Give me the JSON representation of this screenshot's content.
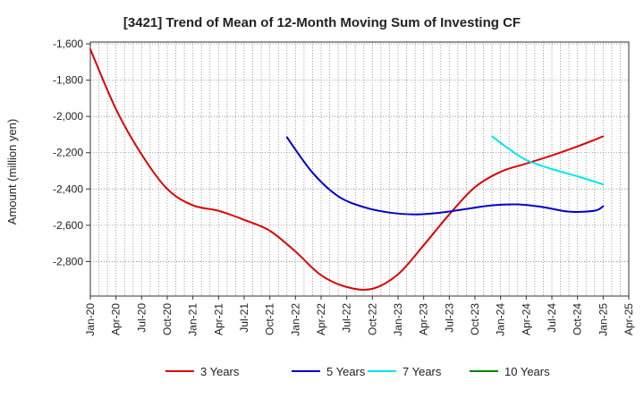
{
  "chart_data": {
    "type": "line",
    "title": "[3421]  Trend of Mean of 12-Month Moving Sum of Investing CF",
    "xlabel": "",
    "ylabel": "Amount (million yen)",
    "ylim": [
      -2990,
      -1590
    ],
    "yticks": [
      -1600,
      -1800,
      -2000,
      -2200,
      -2400,
      -2600,
      -2800
    ],
    "ytick_labels": [
      "-1,600",
      "-1,800",
      "-2,000",
      "-2,200",
      "-2,400",
      "-2,600",
      "-2,800"
    ],
    "xtick_labels": [
      "Jan-20",
      "Apr-20",
      "Jul-20",
      "Oct-20",
      "Jan-21",
      "Apr-21",
      "Jul-21",
      "Oct-21",
      "Jan-22",
      "Apr-22",
      "Jul-22",
      "Oct-22",
      "Jan-23",
      "Apr-23",
      "Jul-23",
      "Oct-23",
      "Jan-24",
      "Apr-24",
      "Jul-24",
      "Oct-24",
      "Jan-25",
      "Apr-25"
    ],
    "x_range": [
      "2020-01",
      "2025-04"
    ],
    "grid": true,
    "legend_position": "bottom",
    "series": [
      {
        "name": "3 Years",
        "color": "#dd0000",
        "points": [
          [
            "2020-01",
            -1630
          ],
          [
            "2020-04",
            -1960
          ],
          [
            "2020-07",
            -2210
          ],
          [
            "2020-10",
            -2400
          ],
          [
            "2021-01",
            -2490
          ],
          [
            "2021-04",
            -2520
          ],
          [
            "2021-07",
            -2570
          ],
          [
            "2021-10",
            -2630
          ],
          [
            "2022-01",
            -2745
          ],
          [
            "2022-04",
            -2875
          ],
          [
            "2022-07",
            -2940
          ],
          [
            "2022-10",
            -2950
          ],
          [
            "2023-01",
            -2870
          ],
          [
            "2023-04",
            -2710
          ],
          [
            "2023-07",
            -2540
          ],
          [
            "2023-10",
            -2390
          ],
          [
            "2024-01",
            -2305
          ],
          [
            "2024-04",
            -2260
          ],
          [
            "2024-07",
            -2215
          ],
          [
            "2024-10",
            -2165
          ],
          [
            "2025-01",
            -2110
          ]
        ]
      },
      {
        "name": "5 Years",
        "color": "#0000cc",
        "points": [
          [
            "2021-12",
            -2115
          ],
          [
            "2022-03",
            -2310
          ],
          [
            "2022-06",
            -2440
          ],
          [
            "2022-09",
            -2500
          ],
          [
            "2022-12",
            -2530
          ],
          [
            "2023-03",
            -2540
          ],
          [
            "2023-06",
            -2530
          ],
          [
            "2023-09",
            -2510
          ],
          [
            "2023-12",
            -2490
          ],
          [
            "2024-03",
            -2485
          ],
          [
            "2024-06",
            -2500
          ],
          [
            "2024-09",
            -2525
          ],
          [
            "2024-12",
            -2520
          ],
          [
            "2025-01",
            -2495
          ]
        ]
      },
      {
        "name": "7 Years",
        "color": "#00e5ee",
        "points": [
          [
            "2023-12",
            -2110
          ],
          [
            "2024-02",
            -2180
          ],
          [
            "2024-04",
            -2240
          ],
          [
            "2024-07",
            -2290
          ],
          [
            "2024-10",
            -2330
          ],
          [
            "2025-01",
            -2375
          ]
        ]
      },
      {
        "name": "10 Years",
        "color": "#008000",
        "points": []
      }
    ]
  }
}
